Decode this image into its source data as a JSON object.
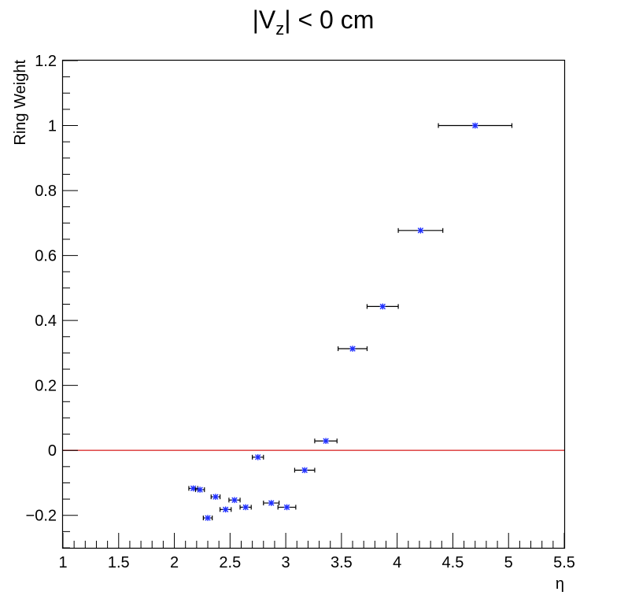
{
  "chart_data": {
    "type": "scatter",
    "title": {
      "prefix": "|V",
      "subscript": "z",
      "suffix": "| <   0 cm"
    },
    "xlabel": "η",
    "ylabel": "Ring Weight",
    "xlim": [
      1,
      5.5
    ],
    "ylim": [
      -0.3,
      1.2
    ],
    "x_ticks": [
      "1",
      "1.5",
      "2",
      "2.5",
      "3",
      "3.5",
      "4",
      "4.5",
      "5",
      "5.5"
    ],
    "y_ticks": [
      "−0.2",
      "0",
      "0.2",
      "0.4",
      "0.6",
      "0.8",
      "1",
      "1.2"
    ],
    "reference_line": {
      "y": 0,
      "color": "#e05050"
    },
    "marker_color": "#1f2fff",
    "errorbar_color": "#000000",
    "points": [
      {
        "x": 2.17,
        "xerr": 0.04,
        "y": -0.117
      },
      {
        "x": 2.23,
        "xerr": 0.04,
        "y": -0.121
      },
      {
        "x": 2.3,
        "xerr": 0.04,
        "y": -0.208
      },
      {
        "x": 2.37,
        "xerr": 0.04,
        "y": -0.143
      },
      {
        "x": 2.46,
        "xerr": 0.05,
        "y": -0.182
      },
      {
        "x": 2.54,
        "xerr": 0.05,
        "y": -0.153
      },
      {
        "x": 2.64,
        "xerr": 0.05,
        "y": -0.175
      },
      {
        "x": 2.75,
        "xerr": 0.05,
        "y": -0.021
      },
      {
        "x": 2.87,
        "xerr": 0.07,
        "y": -0.162
      },
      {
        "x": 3.01,
        "xerr": 0.08,
        "y": -0.175
      },
      {
        "x": 3.17,
        "xerr": 0.09,
        "y": -0.061
      },
      {
        "x": 3.36,
        "xerr": 0.1,
        "y": 0.029
      },
      {
        "x": 3.6,
        "xerr": 0.13,
        "y": 0.313
      },
      {
        "x": 3.87,
        "xerr": 0.14,
        "y": 0.443
      },
      {
        "x": 4.21,
        "xerr": 0.2,
        "y": 0.677
      },
      {
        "x": 4.7,
        "xerr": 0.33,
        "y": 1.0
      }
    ]
  }
}
